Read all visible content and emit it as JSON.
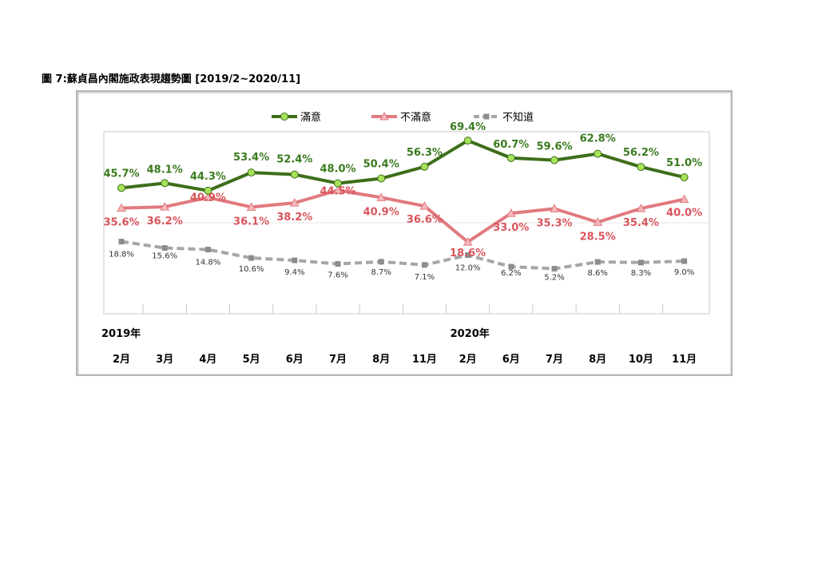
{
  "page": {
    "title": "圖 7:蘇貞昌內閣施政表現趨勢圖  [2019/2~2020/11]"
  },
  "chart_data": {
    "type": "line",
    "x": [
      "2月",
      "3月",
      "4月",
      "5月",
      "6月",
      "7月",
      "8月",
      "11月",
      "2月",
      "6月",
      "7月",
      "8月",
      "10月",
      "11月"
    ],
    "year_labels": [
      {
        "index": 0,
        "label": "2019年"
      },
      {
        "index": 8,
        "label": "2020年"
      }
    ],
    "series": [
      {
        "name": "滿意",
        "color": "#3d6e1a",
        "marker_color": "#a6e35a",
        "marker": "circle",
        "dash": "solid",
        "values": [
          45.7,
          48.1,
          44.3,
          53.4,
          52.4,
          48.0,
          50.4,
          56.3,
          69.4,
          60.7,
          59.6,
          62.8,
          56.2,
          51.0
        ],
        "labels": [
          "45.7%",
          "48.1%",
          "44.3%",
          "53.4%",
          "52.4%",
          "48.0%",
          "50.4%",
          "56.3%",
          "69.4%",
          "60.7%",
          "59.6%",
          "62.8%",
          "56.2%",
          "51.0%"
        ]
      },
      {
        "name": "不滿意",
        "color": "#e07a7f",
        "marker_color": "#f4b9bc",
        "marker": "triangle",
        "dash": "solid",
        "values": [
          35.6,
          36.2,
          40.9,
          36.1,
          38.2,
          44.5,
          40.9,
          36.6,
          18.6,
          33.0,
          35.3,
          28.5,
          35.4,
          40.0
        ],
        "labels": [
          "35.6%",
          "36.2%",
          "40.9%",
          "36.1%",
          "38.2%",
          "44.5%",
          "40.9%",
          "36.6%",
          "18.6%",
          "33.0%",
          "35.3%",
          "28.5%",
          "35.4%",
          "40.0%"
        ]
      },
      {
        "name": "不知道",
        "color": "#a6a6a6",
        "marker_color": "#8c8c8c",
        "marker": "square",
        "dash": "dashed",
        "values": [
          18.8,
          15.6,
          14.8,
          10.6,
          9.4,
          7.6,
          8.7,
          7.1,
          12.0,
          6.2,
          5.2,
          8.6,
          8.3,
          9.0
        ],
        "labels": [
          "18.8%",
          "15.6%",
          "14.8%",
          "10.6%",
          "9.4%",
          "7.6%",
          "8.7%",
          "7.1%",
          "12.0%",
          "6.2%",
          "5.2%",
          "8.6%",
          "8.3%",
          "9.0%"
        ]
      }
    ],
    "legend_position": "top-center",
    "grid": false
  }
}
